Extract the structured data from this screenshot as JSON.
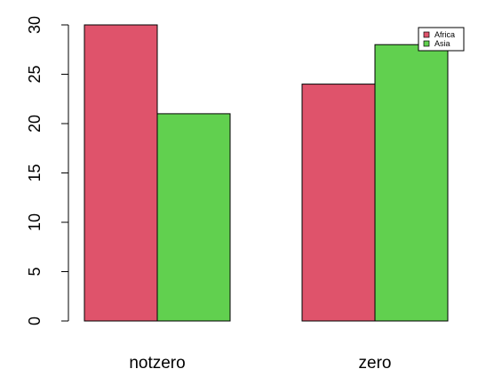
{
  "chart_data": {
    "type": "bar",
    "title": "",
    "xlabel": "",
    "ylabel": "",
    "categories": [
      "notzero",
      "zero"
    ],
    "series": [
      {
        "name": "Africa",
        "values": [
          30,
          24
        ],
        "color": "#DF536B"
      },
      {
        "name": "Asia",
        "values": [
          21,
          28
        ],
        "color": "#61D04F"
      }
    ],
    "ylim": [
      0,
      30
    ],
    "yticks": [
      "0",
      "5",
      "10",
      "15",
      "20",
      "25",
      "30"
    ],
    "grid": false,
    "legend_position": "top-right"
  }
}
